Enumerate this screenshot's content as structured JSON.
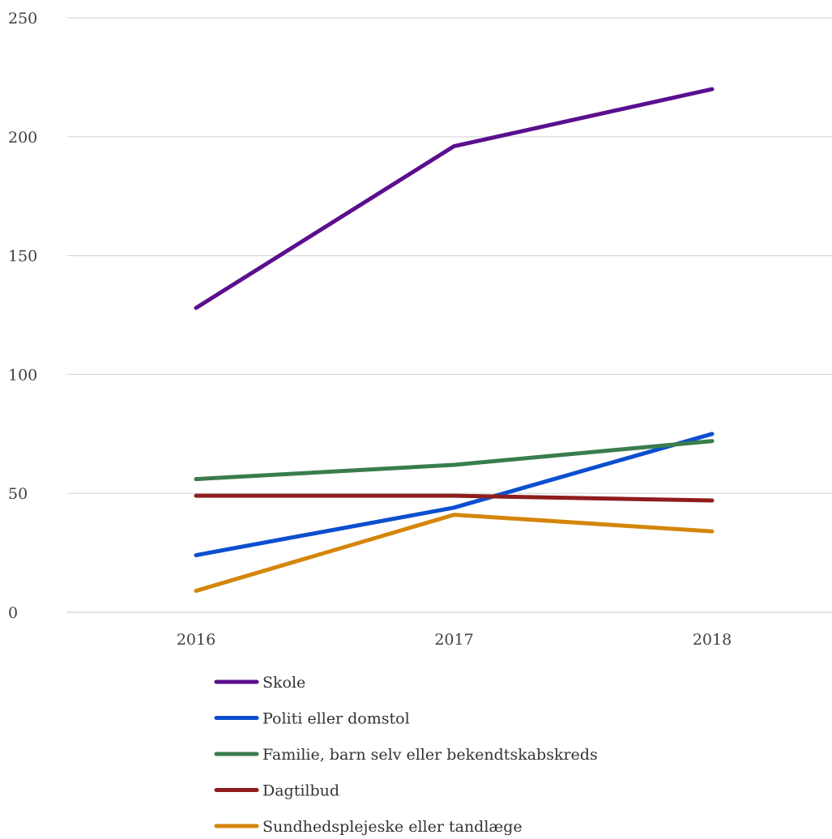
{
  "chart_data": {
    "type": "line",
    "title": "",
    "xlabel": "",
    "ylabel": "",
    "x": [
      "2016",
      "2017",
      "2018"
    ],
    "ylim": [
      0,
      250
    ],
    "yticks": [
      0,
      50,
      100,
      150,
      200,
      250
    ],
    "ytick_labels": [
      "0",
      "50",
      "100",
      "150",
      "200",
      "250"
    ],
    "grid": "horizontal",
    "legend_position": "bottom",
    "series": [
      {
        "name": "Skole",
        "color": "#5b0f8e",
        "values": [
          128,
          196,
          220
        ]
      },
      {
        "name": "Politi eller domstol",
        "color": "#0b4fcf",
        "values": [
          24,
          44,
          75
        ]
      },
      {
        "name": "Familie, barn selv eller bekendtskabskreds",
        "color": "#3a7d4c",
        "values": [
          56,
          62,
          72
        ]
      },
      {
        "name": "Dagtilbud",
        "color": "#8f1d1d",
        "values": [
          49,
          49,
          47
        ]
      },
      {
        "name": "Sundhedsplejeske eller tandlæge",
        "color": "#d4860b",
        "values": [
          9,
          41,
          34
        ]
      }
    ]
  }
}
